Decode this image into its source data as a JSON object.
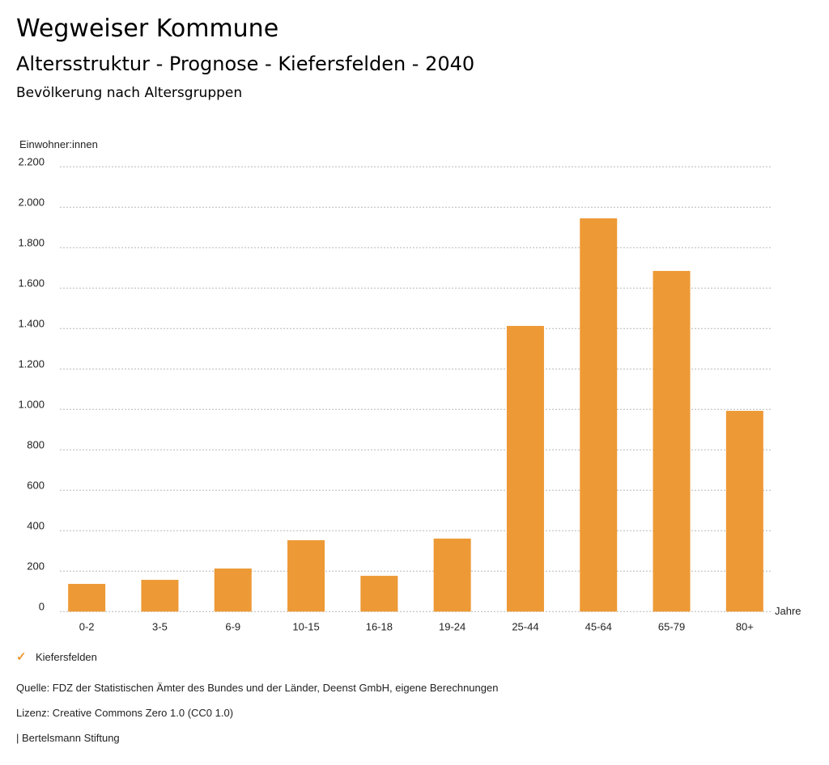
{
  "header": {
    "title": "Wegweiser Kommune",
    "subtitle": "Altersstruktur - Prognose - Kiefersfelden - 2040",
    "subsubtitle": "Bevölkerung nach Altersgruppen"
  },
  "chart_data": {
    "type": "bar",
    "title": "Bevölkerung nach Altersgruppen",
    "ylabel": "Einwohner:innen",
    "xlabel": "Jahre",
    "categories": [
      "0-2",
      "3-5",
      "6-9",
      "10-15",
      "16-18",
      "19-24",
      "25-44",
      "45-64",
      "65-79",
      "80+"
    ],
    "series": [
      {
        "name": "Kiefersfelden",
        "values": [
          137,
          157,
          213,
          353,
          177,
          361,
          1413,
          1945,
          1685,
          993
        ],
        "color": "#ed9935"
      }
    ],
    "ylim": [
      0,
      2200
    ],
    "yticks": [
      0,
      200,
      400,
      600,
      800,
      1000,
      1200,
      1400,
      1600,
      1800,
      2000,
      2200
    ],
    "ytick_labels": [
      "0",
      "200",
      "400",
      "600",
      "800",
      "1.000",
      "1.200",
      "1.400",
      "1.600",
      "1.800",
      "2.000",
      "2.200"
    ],
    "grid": true,
    "legend_position": "bottom-left"
  },
  "legend": {
    "label": "Kiefersfelden",
    "icon": "check-icon"
  },
  "footer": {
    "source": "Quelle: FDZ der Statistischen Ämter des Bundes und der Länder, Deenst GmbH, eigene Berechnungen",
    "license": "Lizenz: Creative Commons Zero 1.0 (CC0 1.0)",
    "publisher": "| Bertelsmann Stiftung"
  }
}
